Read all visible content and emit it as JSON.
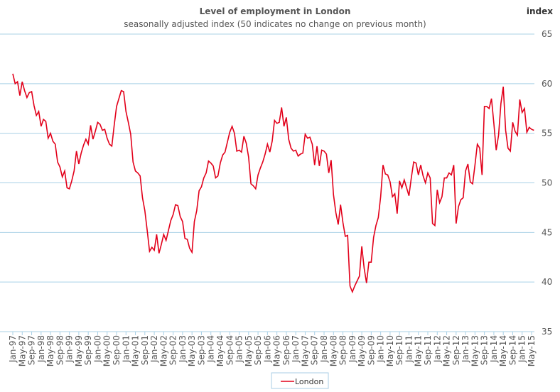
{
  "chart_data": {
    "type": "line",
    "title": "Level of employment in London",
    "subtitle": "seasonally adjusted index (50 indicates no change on previous month)",
    "y_axis_label": "index",
    "categories": [
      "Jan-97",
      null,
      null,
      null,
      "May-97",
      null,
      null,
      null,
      "Sep-97",
      null,
      null,
      null,
      "Jan-98",
      null,
      null,
      null,
      "May-98",
      null,
      null,
      null,
      "Sep-98",
      null,
      null,
      null,
      "Jan-99",
      null,
      null,
      null,
      "May-99",
      null,
      null,
      null,
      "Sep-99",
      null,
      null,
      null,
      "Jan-00",
      null,
      null,
      null,
      "May-00",
      null,
      null,
      null,
      "Sep-00",
      null,
      null,
      null,
      "Jan-01",
      null,
      null,
      null,
      "May-01",
      null,
      null,
      null,
      "Sep-01",
      null,
      null,
      null,
      "Jan-02",
      null,
      null,
      null,
      "May-02",
      null,
      null,
      null,
      "Sep-02",
      null,
      null,
      null,
      "Jan-03",
      null,
      null,
      null,
      "May-03",
      null,
      null,
      null,
      "Sep-03",
      null,
      null,
      null,
      "Jan-04",
      null,
      null,
      null,
      "May-04",
      null,
      null,
      null,
      "Sep-04",
      null,
      null,
      null,
      "Jan-05",
      null,
      null,
      null,
      "May-05",
      null,
      null,
      null,
      "Sep-05",
      null,
      null,
      null,
      "Jan-06",
      null,
      null,
      null,
      "May-06",
      null,
      null,
      null,
      "Sep-06",
      null,
      null,
      null,
      "Jan-07",
      null,
      null,
      null,
      "May-07",
      null,
      null,
      null,
      "Sep-07",
      null,
      null,
      null,
      "Jan-08",
      null,
      null,
      null,
      "May-08",
      null,
      null,
      null,
      "Sep-08",
      null,
      null,
      null,
      "Jan-09",
      null,
      null,
      null,
      "May-09",
      null,
      null,
      null,
      "Sep-09",
      null,
      null,
      null,
      "Jan-10",
      null,
      null,
      null,
      "May-10",
      null,
      null,
      null,
      "Sep-10",
      null,
      null,
      null,
      "Jan-11",
      null,
      null,
      null,
      "May-11",
      null,
      null,
      null,
      "Sep-11",
      null,
      null,
      null,
      "Jan-12",
      null,
      null,
      null,
      "May-12",
      null,
      null,
      null,
      "Sep-12",
      null,
      null,
      null,
      "Jan-13",
      null,
      null,
      null,
      "May-13",
      null,
      null,
      null,
      "Sep-13",
      null,
      null,
      null,
      "Jan-14",
      null,
      null,
      null,
      "May-14",
      null,
      null,
      null,
      "Sep-14",
      null,
      null,
      null,
      "Jan-15",
      null,
      null,
      null,
      "May-15",
      null
    ],
    "series": [
      {
        "name": "London",
        "color": "#e2001a",
        "values": [
          61,
          60,
          60.2,
          58.8,
          60.2,
          59.3,
          58.6,
          59.1,
          59.2,
          57.8,
          56.8,
          57.2,
          55.7,
          56.4,
          56.2,
          54.5,
          55.0,
          54.2,
          53.9,
          52.1,
          51.6,
          50.6,
          51.2,
          49.5,
          49.4,
          50.2,
          51.2,
          53.2,
          51.9,
          53.0,
          53.8,
          54.4,
          53.9,
          55.8,
          54.4,
          55.2,
          56.1,
          55.9,
          55.3,
          55.4,
          54.5,
          53.9,
          53.7,
          55.8,
          57.7,
          58.5,
          59.3,
          59.2,
          57.2,
          56.1,
          54.9,
          52.1,
          51.2,
          51.0,
          50.7,
          48.5,
          47.2,
          45.2,
          43.1,
          43.5,
          43.2,
          44.8,
          42.9,
          43.8,
          44.8,
          44.2,
          45.2,
          46.2,
          46.8,
          47.8,
          47.7,
          46.6,
          46.1,
          44.4,
          44.3,
          43.4,
          43.0,
          46.1,
          47.2,
          49.2,
          49.6,
          50.5,
          51.0,
          52.2,
          52.0,
          51.7,
          50.5,
          50.7,
          52.0,
          52.8,
          53.1,
          54.1,
          55.1,
          55.7,
          55.0,
          53.2,
          53.3,
          53.1,
          54.7,
          54.0,
          52.6,
          49.9,
          49.7,
          49.4,
          50.8,
          51.5,
          52.1,
          52.9,
          53.9,
          53.1,
          54.2,
          56.3,
          56.0,
          56.1,
          57.6,
          55.7,
          56.6,
          54.4,
          53.5,
          53.2,
          53.3,
          52.7,
          52.9,
          53.0,
          54.9,
          54.5,
          54.6,
          53.9,
          51.8,
          53.7,
          51.7,
          53.3,
          53.2,
          52.9,
          51.0,
          52.3,
          48.8,
          47.0,
          45.8,
          47.8,
          46.0,
          44.6,
          44.7,
          39.6,
          39.0,
          39.6,
          40.1,
          40.6,
          43.6,
          41.4,
          39.9,
          42.0,
          42.0,
          44.5,
          45.7,
          46.5,
          48.6,
          51.8,
          50.9,
          50.8,
          50.1,
          48.6,
          48.9,
          46.9,
          50.2,
          49.5,
          50.3,
          49.5,
          48.7,
          50.5,
          52.1,
          52.0,
          50.8,
          51.8,
          50.7,
          50.0,
          51.0,
          50.5,
          45.9,
          45.7,
          49.3,
          48.0,
          48.6,
          50.5,
          50.5,
          51.0,
          50.8,
          51.8,
          45.9,
          47.6,
          48.3,
          48.5,
          51.2,
          51.9,
          50.1,
          49.9,
          51.8,
          53.9,
          53.5,
          50.8,
          57.7,
          57.7,
          57.5,
          58.5,
          56.0,
          53.3,
          54.8,
          58.0,
          59.7,
          55.3,
          53.5,
          53.2,
          56.1,
          55.2,
          54.8,
          58.4,
          57.1,
          57.5,
          55.1,
          55.6,
          55.4,
          55.3
        ]
      }
    ],
    "ylim": [
      35,
      65
    ],
    "yticks": [
      35,
      40,
      45,
      50,
      55,
      60,
      65
    ],
    "grid": true,
    "legend": "bottom"
  }
}
